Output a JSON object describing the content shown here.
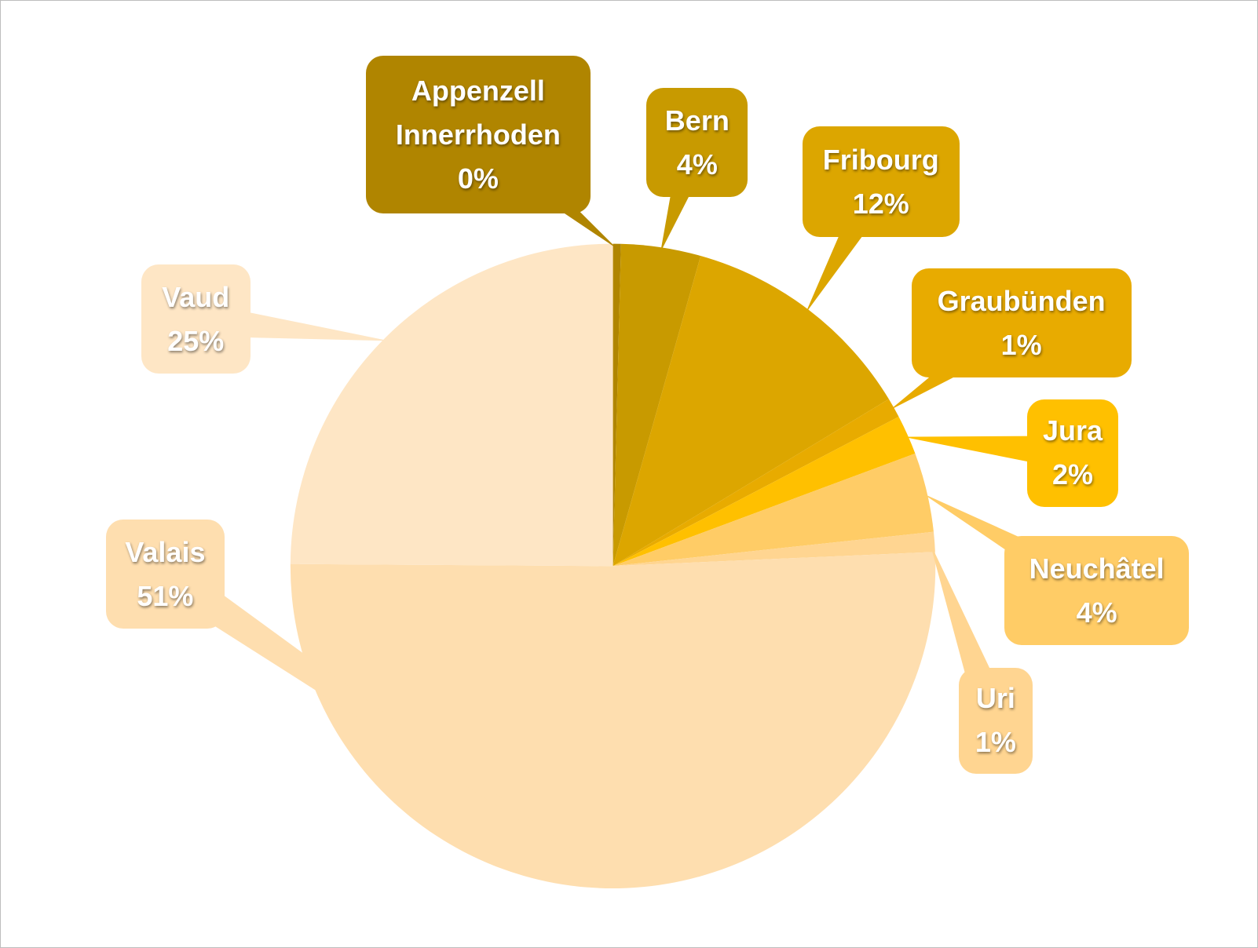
{
  "chart_data": {
    "type": "pie",
    "categories": [
      "Appenzell Innerrhoden",
      "Bern",
      "Fribourg",
      "Graubünden",
      "Jura",
      "Neuchâtel",
      "Uri",
      "Valais",
      "Vaud"
    ],
    "values": [
      0.4,
      4,
      12,
      1,
      2,
      4,
      1,
      51,
      25
    ],
    "value_labels": [
      "0%",
      "4%",
      "12%",
      "1%",
      "2%",
      "4%",
      "1%",
      "51%",
      "25%"
    ],
    "colors": [
      "#b08500",
      "#c89a00",
      "#dca600",
      "#e8ab00",
      "#ffc000",
      "#ffcc66",
      "#ffd591",
      "#fedeaf",
      "#fee6c5"
    ]
  }
}
